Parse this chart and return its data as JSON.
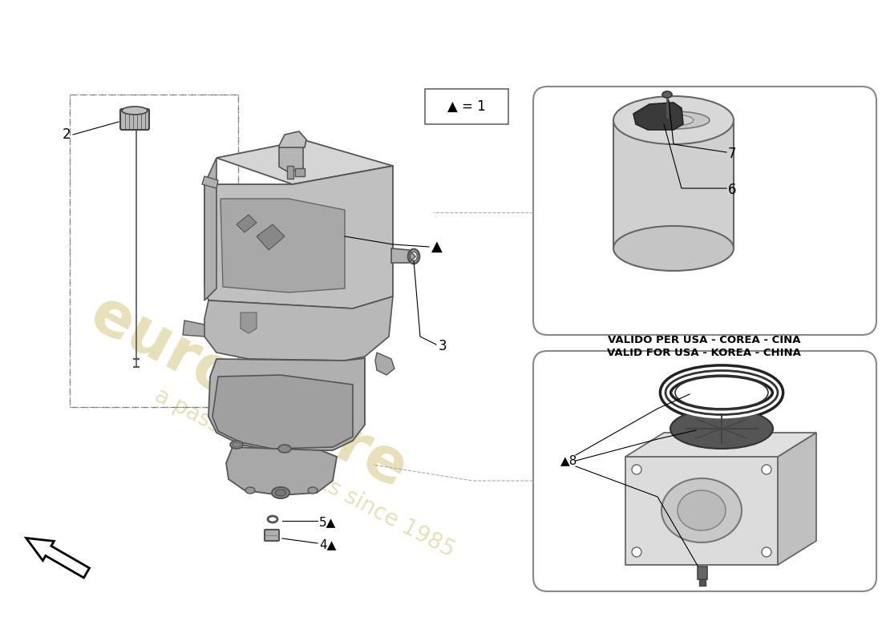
{
  "background_color": "#ffffff",
  "watermark_color": "#e8e0b8",
  "note_text": "▲ = 1",
  "valid_text_line1": "VALIDO PER USA - COREA - CINA",
  "valid_text_line2": "VALID FOR USA - KOREA - CHINA",
  "triangle_symbol": "▲",
  "line_color": "#000000",
  "part_gray": "#c8c8c8",
  "part_dark": "#888888",
  "part_mid": "#aaaaaa"
}
